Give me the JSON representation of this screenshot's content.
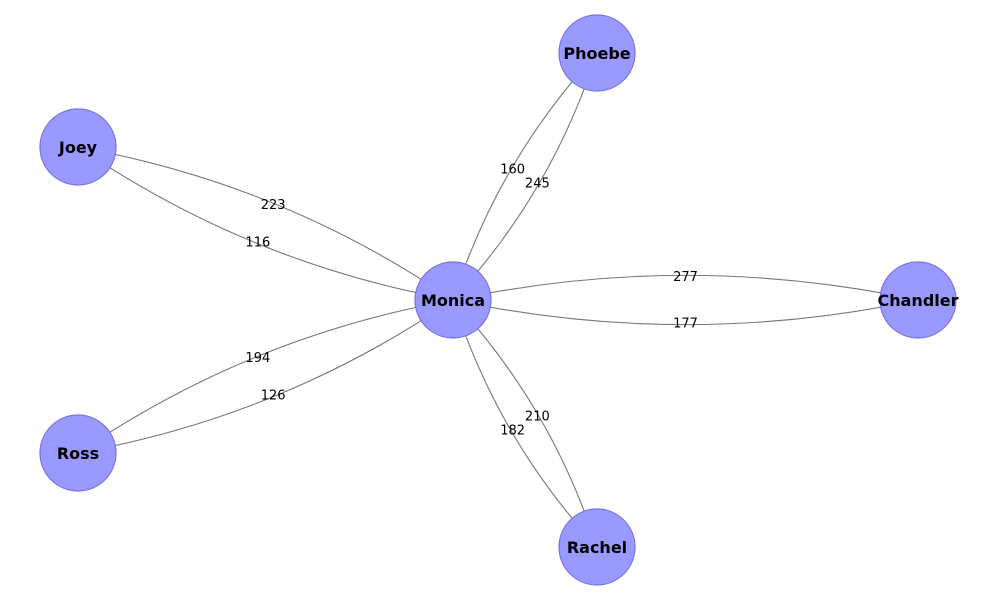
{
  "nodes": [
    {
      "id": "Monica",
      "label": "Monica"
    },
    {
      "id": "Phoebe",
      "label": "Phoebe"
    },
    {
      "id": "Joey",
      "label": "Joey"
    },
    {
      "id": "Chandler",
      "label": "Chandler"
    },
    {
      "id": "Ross",
      "label": "Ross"
    },
    {
      "id": "Rachel",
      "label": "Rachel"
    }
  ],
  "edges": [
    {
      "from": "Monica",
      "to": "Phoebe",
      "label": "245"
    },
    {
      "from": "Phoebe",
      "to": "Monica",
      "label": "160"
    },
    {
      "from": "Monica",
      "to": "Joey",
      "label": "223"
    },
    {
      "from": "Joey",
      "to": "Monica",
      "label": "116"
    },
    {
      "from": "Monica",
      "to": "Chandler",
      "label": "177"
    },
    {
      "from": "Chandler",
      "to": "Monica",
      "label": "277"
    },
    {
      "from": "Monica",
      "to": "Ross",
      "label": "194"
    },
    {
      "from": "Ross",
      "to": "Monica",
      "label": "126"
    },
    {
      "from": "Monica",
      "to": "Rachel",
      "label": "182"
    },
    {
      "from": "Rachel",
      "to": "Monica",
      "label": "210"
    }
  ],
  "colors": {
    "node_fill": "#9999ff",
    "node_stroke": "#7373e6",
    "edge": "#777777",
    "arrow": "#5555aa"
  }
}
